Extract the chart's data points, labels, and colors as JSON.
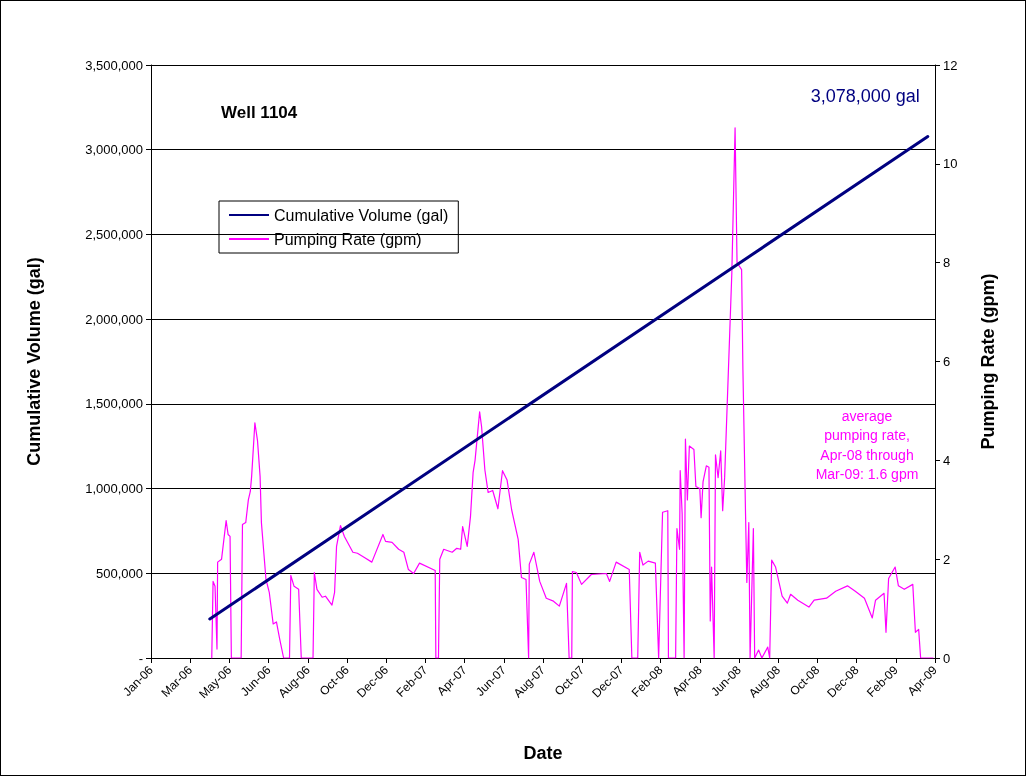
{
  "chart_data": {
    "type": "line",
    "title": "Well 1104",
    "xlabel": "Date",
    "ylabel": "Cumulative Volume (gal)",
    "y2label": "Pumping Rate (gpm)",
    "xlim": [
      "2006-01-01",
      "2009-04-15"
    ],
    "xticks": [
      {
        "value": "2006-01-01",
        "label": "Jan-06"
      },
      {
        "value": "2006-03-02",
        "label": "Mar-06"
      },
      {
        "value": "2006-05-01",
        "label": "May-06"
      },
      {
        "value": "2006-06-30",
        "label": "Jun-06"
      },
      {
        "value": "2006-08-29",
        "label": "Aug-06"
      },
      {
        "value": "2006-10-28",
        "label": "Oct-06"
      },
      {
        "value": "2006-12-27",
        "label": "Dec-06"
      },
      {
        "value": "2007-02-25",
        "label": "Feb-07"
      },
      {
        "value": "2007-04-26",
        "label": "Apr-07"
      },
      {
        "value": "2007-06-25",
        "label": "Jun-07"
      },
      {
        "value": "2007-08-24",
        "label": "Aug-07"
      },
      {
        "value": "2007-10-23",
        "label": "Oct-07"
      },
      {
        "value": "2007-12-22",
        "label": "Dec-07"
      },
      {
        "value": "2008-02-20",
        "label": "Feb-08"
      },
      {
        "value": "2008-04-20",
        "label": "Apr-08"
      },
      {
        "value": "2008-06-19",
        "label": "Jun-08"
      },
      {
        "value": "2008-08-18",
        "label": "Aug-08"
      },
      {
        "value": "2008-10-17",
        "label": "Oct-08"
      },
      {
        "value": "2008-12-16",
        "label": "Dec-08"
      },
      {
        "value": "2009-02-14",
        "label": "Feb-09"
      },
      {
        "value": "2009-04-15",
        "label": "Apr-09"
      }
    ],
    "ylim": [
      0,
      3500000
    ],
    "yticks": [
      {
        "value": 0,
        "label": "-"
      },
      {
        "value": 500000,
        "label": "500,000"
      },
      {
        "value": 1000000,
        "label": "1,000,000"
      },
      {
        "value": 1500000,
        "label": "1,500,000"
      },
      {
        "value": 2000000,
        "label": "2,000,000"
      },
      {
        "value": 2500000,
        "label": "2,500,000"
      },
      {
        "value": 3000000,
        "label": "3,000,000"
      },
      {
        "value": 3500000,
        "label": "3,500,000"
      }
    ],
    "y2lim": [
      0,
      12
    ],
    "y2ticks": [
      0,
      2,
      4,
      6,
      8,
      10,
      12
    ],
    "grid": "y",
    "legend": "top left",
    "marker": "none",
    "line_style": "solid",
    "annotations": [
      {
        "text": "3,078,000 gal",
        "x": "2009-04-04",
        "y": 3078000
      },
      "average pumping rate, Apr-08 through Mar-09: 1.6 gpm"
    ],
    "series": [
      {
        "name": "Cumulative Volume (gal)",
        "color": "#000080",
        "x": [
          "2006-04-01",
          "2009-04-04"
        ],
        "values": [
          230000,
          3078000
        ]
      },
      {
        "name": "Pumping Rate (gpm)",
        "color": "#ff00ff",
        "axis": "y2",
        "x": [
          "2006-04-04",
          "2006-04-06",
          "2006-04-09",
          "2006-04-12",
          "2006-04-13",
          "2006-04-19",
          "2006-04-26",
          "2006-04-29",
          "2006-05-02",
          "2006-05-04",
          "2006-05-19",
          "2006-05-21",
          "2006-05-26",
          "2006-05-30",
          "2006-06-02",
          "2006-06-04",
          "2006-06-09",
          "2006-06-13",
          "2006-06-17",
          "2006-06-19",
          "2006-06-26",
          "2006-07-01",
          "2006-07-07",
          "2006-07-12",
          "2006-07-17",
          "2006-07-23",
          "2006-08-01",
          "2006-08-03",
          "2006-08-08",
          "2006-08-15",
          "2006-08-19",
          "2006-09-06",
          "2006-09-08",
          "2006-09-12",
          "2006-09-20",
          "2006-09-25",
          "2006-10-05",
          "2006-10-09",
          "2006-10-12",
          "2006-10-18",
          "2006-10-24",
          "2006-11-06",
          "2006-11-13",
          "2006-11-23",
          "2006-12-05",
          "2006-12-22",
          "2006-12-26",
          "2007-01-05",
          "2007-01-15",
          "2007-01-23",
          "2007-01-30",
          "2007-02-07",
          "2007-02-16",
          "2007-03-12",
          "2007-03-13",
          "2007-03-17",
          "2007-03-19",
          "2007-03-25",
          "2007-04-07",
          "2007-04-14",
          "2007-04-20",
          "2007-04-23",
          "2007-04-30",
          "2007-05-05",
          "2007-05-09",
          "2007-05-12",
          "2007-05-19",
          "2007-05-22",
          "2007-05-27",
          "2007-06-01",
          "2007-06-08",
          "2007-06-16",
          "2007-06-23",
          "2007-06-30",
          "2007-07-07",
          "2007-07-17",
          "2007-07-22",
          "2007-07-29",
          "2007-08-02",
          "2007-08-03",
          "2007-08-10",
          "2007-08-19",
          "2007-08-29",
          "2007-09-09",
          "2007-09-18",
          "2007-09-29",
          "2007-10-03",
          "2007-10-07",
          "2007-10-08",
          "2007-10-14",
          "2007-10-22",
          "2007-11-06",
          "2007-11-29",
          "2007-12-04",
          "2007-12-14",
          "2008-01-03",
          "2008-01-07",
          "2008-01-16",
          "2008-01-19",
          "2008-01-24",
          "2008-02-01",
          "2008-02-12",
          "2008-02-17",
          "2008-02-23",
          "2008-03-02",
          "2008-03-03",
          "2008-03-14",
          "2008-03-16",
          "2008-03-20",
          "2008-03-21",
          "2008-03-24",
          "2008-03-27",
          "2008-03-29",
          "2008-04-01",
          "2008-04-04",
          "2008-04-11",
          "2008-04-14",
          "2008-04-20",
          "2008-04-22",
          "2008-04-25",
          "2008-04-30",
          "2008-05-04",
          "2008-05-06",
          "2008-05-08",
          "2008-05-12",
          "2008-05-14",
          "2008-05-18",
          "2008-05-22",
          "2008-05-25",
          "2008-05-28",
          "2008-06-08",
          "2008-06-13",
          "2008-06-16",
          "2008-06-23",
          "2008-06-25",
          "2008-06-29",
          "2008-07-01",
          "2008-07-04",
          "2008-07-06",
          "2008-07-11",
          "2008-07-13",
          "2008-07-19",
          "2008-07-24",
          "2008-08-02",
          "2008-08-05",
          "2008-08-08",
          "2008-08-14",
          "2008-08-24",
          "2008-09-01",
          "2008-09-06",
          "2008-09-17",
          "2008-10-04",
          "2008-10-12",
          "2008-10-31",
          "2008-11-14",
          "2008-12-02",
          "2008-12-14",
          "2008-12-28",
          "2009-01-09",
          "2009-01-14",
          "2009-01-27",
          "2009-01-30",
          "2009-02-03",
          "2009-02-13",
          "2009-02-18",
          "2009-02-27",
          "2009-03-12",
          "2009-03-16",
          "2009-03-21",
          "2009-03-24",
          "2009-04-12"
        ],
        "values": [
          0,
          1.55,
          1.45,
          0.18,
          1.94,
          2.0,
          2.78,
          2.5,
          2.46,
          0,
          0,
          2.7,
          2.74,
          3.2,
          3.37,
          3.67,
          4.76,
          4.4,
          3.67,
          2.74,
          1.59,
          1.33,
          0.69,
          0.73,
          0.38,
          0,
          0,
          1.67,
          1.45,
          1.39,
          0,
          0,
          1.73,
          1.39,
          1.23,
          1.25,
          1.07,
          1.33,
          2.26,
          2.68,
          2.46,
          2.14,
          2.12,
          2.04,
          1.94,
          2.5,
          2.36,
          2.34,
          2.2,
          2.14,
          1.79,
          1.71,
          1.92,
          1.77,
          0,
          0,
          2.0,
          2.2,
          2.14,
          2.22,
          2.2,
          2.66,
          2.26,
          2.86,
          3.75,
          4.0,
          4.98,
          4.68,
          3.81,
          3.35,
          3.39,
          3.02,
          3.79,
          3.6,
          3.0,
          2.4,
          1.63,
          1.59,
          0,
          1.9,
          2.14,
          1.55,
          1.21,
          1.15,
          1.05,
          1.51,
          0,
          0,
          1.75,
          1.73,
          1.49,
          1.69,
          1.71,
          1.55,
          1.94,
          1.79,
          0,
          0,
          2.14,
          1.88,
          1.96,
          1.92,
          0,
          2.95,
          2.98,
          0,
          0,
          2.62,
          2.2,
          3.79,
          2.92,
          0,
          4.43,
          3.2,
          4.29,
          4.22,
          3.47,
          3.43,
          2.84,
          3.57,
          3.89,
          3.86,
          0.75,
          1.84,
          0,
          4.11,
          3.65,
          4.19,
          2.98,
          3.65,
          7.78,
          10.73,
          8.0,
          7.86,
          5.83,
          2.92,
          1.53,
          2.74,
          0,
          2.62,
          0,
          0.16,
          0,
          0.22,
          0,
          1.98,
          1.84,
          1.25,
          1.11,
          1.29,
          1.17,
          1.03,
          1.17,
          1.21,
          1.35,
          1.46,
          1.35,
          1.21,
          0.81,
          1.17,
          1.31,
          0.52,
          1.61,
          1.84,
          1.46,
          1.39,
          1.49,
          0.52,
          0.58,
          0,
          0
        ]
      }
    ]
  }
}
